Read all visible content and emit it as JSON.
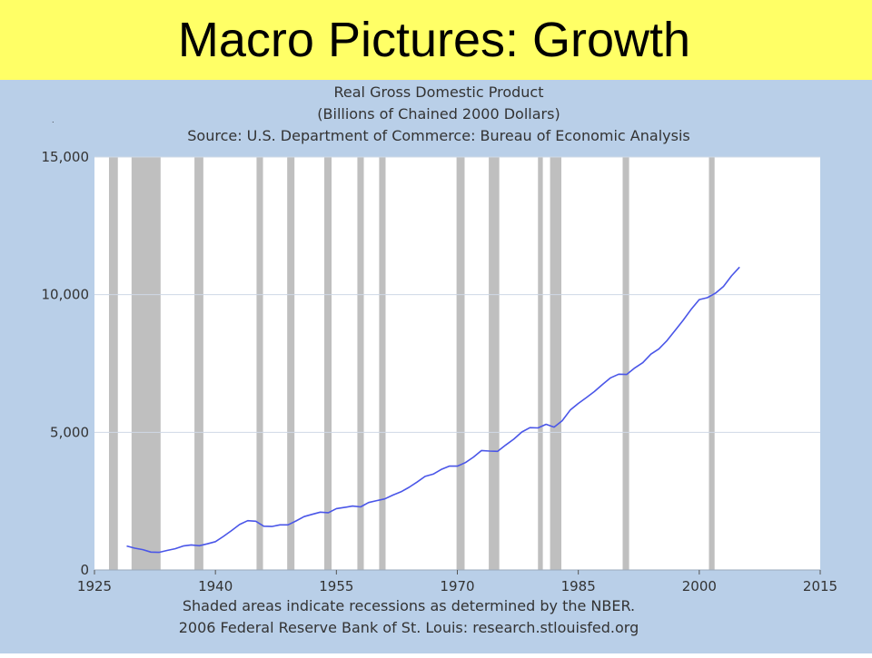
{
  "slide": {
    "title": "Macro Pictures: Growth"
  },
  "colors": {
    "title_bar": "#ffff66",
    "panel_background": "#b9cfe8",
    "plot_background": "#ffffff",
    "recession_shade": "#bfbfbf",
    "gridline": "#cfd8e6",
    "series_line": "#4a56e8"
  },
  "chart_data": {
    "type": "line",
    "title": "Real Gross Domestic Product",
    "subtitle": "(Billions of Chained 2000 Dollars)",
    "source": "Source: U.S. Department of Commerce: Bureau of Economic Analysis",
    "footnotes": [
      "Shaded areas indicate recessions as determined by the NBER.",
      "2006 Federal Reserve Bank of St. Louis: research.stlouisfed.org"
    ],
    "xlabel": "",
    "ylabel": "",
    "xlim": [
      1925,
      2015
    ],
    "ylim": [
      0,
      15000
    ],
    "x_ticks": [
      1925,
      1940,
      1955,
      1970,
      1985,
      2000,
      2015
    ],
    "x_tick_labels": [
      "1925",
      "1940",
      "1955",
      "1970",
      "1985",
      "2000",
      "2015"
    ],
    "y_ticks": [
      0,
      5000,
      10000,
      15000
    ],
    "y_tick_labels": [
      "0",
      "5,000",
      "10,000",
      "15,000"
    ],
    "grid": {
      "horizontal": true,
      "vertical": false
    },
    "legend": "none",
    "recessions": [
      [
        1926.8,
        1927.9
      ],
      [
        1929.6,
        1933.2
      ],
      [
        1937.4,
        1938.5
      ],
      [
        1945.1,
        1945.9
      ],
      [
        1948.9,
        1949.8
      ],
      [
        1953.5,
        1954.4
      ],
      [
        1957.6,
        1958.4
      ],
      [
        1960.3,
        1961.1
      ],
      [
        1969.9,
        1970.9
      ],
      [
        1973.9,
        1975.2
      ],
      [
        1980.0,
        1980.6
      ],
      [
        1981.5,
        1982.9
      ],
      [
        1990.5,
        1991.3
      ],
      [
        2001.2,
        2001.9
      ]
    ],
    "series": [
      {
        "x": [
          1929,
          1930,
          1931,
          1932,
          1933,
          1934,
          1935,
          1936,
          1937,
          1938,
          1939,
          1940,
          1941,
          1942,
          1943,
          1944,
          1945,
          1946,
          1947,
          1948,
          1949,
          1950,
          1951,
          1952,
          1953,
          1954,
          1955,
          1956,
          1957,
          1958,
          1959,
          1960,
          1961,
          1962,
          1963,
          1964,
          1965,
          1966,
          1967,
          1968,
          1969,
          1970,
          1971,
          1972,
          1973,
          1974,
          1975,
          1976,
          1977,
          1978,
          1979,
          1980,
          1981,
          1982,
          1983,
          1984,
          1985,
          1986,
          1987,
          1988,
          1989,
          1990,
          1991,
          1992,
          1993,
          1994,
          1995,
          1996,
          1997,
          1998,
          1999,
          2000,
          2001,
          2002,
          2003,
          2004,
          2005
        ],
        "values": [
          870,
          790,
          740,
          650,
          640,
          710,
          770,
          870,
          910,
          880,
          950,
          1030,
          1220,
          1430,
          1650,
          1790,
          1770,
          1590,
          1580,
          1640,
          1640,
          1780,
          1940,
          2020,
          2100,
          2080,
          2230,
          2270,
          2320,
          2290,
          2450,
          2520,
          2580,
          2720,
          2840,
          3000,
          3190,
          3400,
          3480,
          3650,
          3770,
          3770,
          3900,
          4100,
          4340,
          4320,
          4310,
          4540,
          4750,
          5010,
          5170,
          5160,
          5290,
          5190,
          5420,
          5810,
          6050,
          6260,
          6480,
          6740,
          6980,
          7110,
          7100,
          7340,
          7530,
          7840,
          8030,
          8330,
          8700,
          9070,
          9470,
          9820,
          9890,
          10050,
          10300,
          10680,
          11000
        ]
      }
    ]
  }
}
